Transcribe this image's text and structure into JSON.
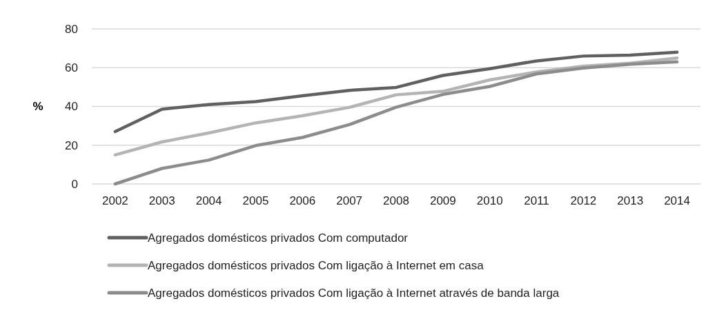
{
  "chart_data": {
    "type": "line",
    "ylabel": "%",
    "categories": [
      "2002",
      "2003",
      "2004",
      "2005",
      "2006",
      "2007",
      "2008",
      "2009",
      "2010",
      "2011",
      "2012",
      "2013",
      "2014"
    ],
    "series": [
      {
        "name": "Agregados domésticos privados Com computador",
        "color": "#606060",
        "values": [
          27,
          38.6,
          41,
          42.5,
          45.5,
          48.3,
          49.8,
          56,
          59.5,
          63.5,
          66,
          66.5,
          68
        ]
      },
      {
        "name": "Agregados domésticos privados Com ligação à Internet em casa",
        "color": "#b4b4b4",
        "values": [
          15,
          21.7,
          26.3,
          31.5,
          35.2,
          39.5,
          46,
          47.8,
          53.7,
          57.8,
          60.8,
          62.3,
          65
        ]
      },
      {
        "name": "Agregados domésticos privados Com ligação à Internet através de banda larga",
        "color": "#8c8c8c",
        "values": [
          0,
          8,
          12.3,
          19.8,
          24,
          30.6,
          39.6,
          46.2,
          50.3,
          56.8,
          59.8,
          61.8,
          63
        ]
      }
    ],
    "ylim": [
      0,
      80
    ],
    "yticks": [
      0,
      20,
      40,
      60,
      80
    ],
    "grid": "y",
    "legend": "bottom",
    "marker": "none",
    "line_style": "solid"
  }
}
